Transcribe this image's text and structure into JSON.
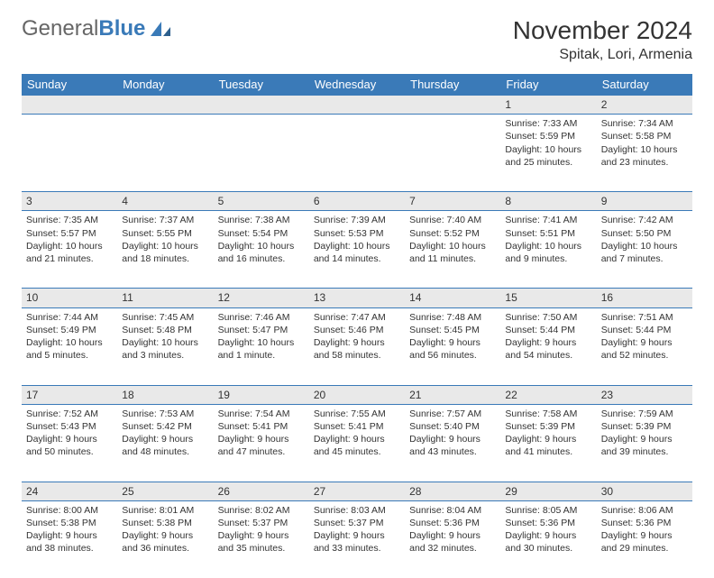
{
  "header": {
    "logo_general": "General",
    "logo_blue": "Blue",
    "month_title": "November 2024",
    "location": "Spitak, Lori, Armenia"
  },
  "colors": {
    "header_bg": "#3a7ab8",
    "header_fg": "#ffffff",
    "daynum_bg": "#e9e9e9",
    "row_border": "#3a7ab8",
    "text": "#333333"
  },
  "weekdays": [
    "Sunday",
    "Monday",
    "Tuesday",
    "Wednesday",
    "Thursday",
    "Friday",
    "Saturday"
  ],
  "weeks": [
    {
      "nums": [
        "",
        "",
        "",
        "",
        "",
        "1",
        "2"
      ],
      "cells": [
        null,
        null,
        null,
        null,
        null,
        {
          "sunrise": "Sunrise: 7:33 AM",
          "sunset": "Sunset: 5:59 PM",
          "day1": "Daylight: 10 hours",
          "day2": "and 25 minutes."
        },
        {
          "sunrise": "Sunrise: 7:34 AM",
          "sunset": "Sunset: 5:58 PM",
          "day1": "Daylight: 10 hours",
          "day2": "and 23 minutes."
        }
      ]
    },
    {
      "nums": [
        "3",
        "4",
        "5",
        "6",
        "7",
        "8",
        "9"
      ],
      "cells": [
        {
          "sunrise": "Sunrise: 7:35 AM",
          "sunset": "Sunset: 5:57 PM",
          "day1": "Daylight: 10 hours",
          "day2": "and 21 minutes."
        },
        {
          "sunrise": "Sunrise: 7:37 AM",
          "sunset": "Sunset: 5:55 PM",
          "day1": "Daylight: 10 hours",
          "day2": "and 18 minutes."
        },
        {
          "sunrise": "Sunrise: 7:38 AM",
          "sunset": "Sunset: 5:54 PM",
          "day1": "Daylight: 10 hours",
          "day2": "and 16 minutes."
        },
        {
          "sunrise": "Sunrise: 7:39 AM",
          "sunset": "Sunset: 5:53 PM",
          "day1": "Daylight: 10 hours",
          "day2": "and 14 minutes."
        },
        {
          "sunrise": "Sunrise: 7:40 AM",
          "sunset": "Sunset: 5:52 PM",
          "day1": "Daylight: 10 hours",
          "day2": "and 11 minutes."
        },
        {
          "sunrise": "Sunrise: 7:41 AM",
          "sunset": "Sunset: 5:51 PM",
          "day1": "Daylight: 10 hours",
          "day2": "and 9 minutes."
        },
        {
          "sunrise": "Sunrise: 7:42 AM",
          "sunset": "Sunset: 5:50 PM",
          "day1": "Daylight: 10 hours",
          "day2": "and 7 minutes."
        }
      ]
    },
    {
      "nums": [
        "10",
        "11",
        "12",
        "13",
        "14",
        "15",
        "16"
      ],
      "cells": [
        {
          "sunrise": "Sunrise: 7:44 AM",
          "sunset": "Sunset: 5:49 PM",
          "day1": "Daylight: 10 hours",
          "day2": "and 5 minutes."
        },
        {
          "sunrise": "Sunrise: 7:45 AM",
          "sunset": "Sunset: 5:48 PM",
          "day1": "Daylight: 10 hours",
          "day2": "and 3 minutes."
        },
        {
          "sunrise": "Sunrise: 7:46 AM",
          "sunset": "Sunset: 5:47 PM",
          "day1": "Daylight: 10 hours",
          "day2": "and 1 minute."
        },
        {
          "sunrise": "Sunrise: 7:47 AM",
          "sunset": "Sunset: 5:46 PM",
          "day1": "Daylight: 9 hours",
          "day2": "and 58 minutes."
        },
        {
          "sunrise": "Sunrise: 7:48 AM",
          "sunset": "Sunset: 5:45 PM",
          "day1": "Daylight: 9 hours",
          "day2": "and 56 minutes."
        },
        {
          "sunrise": "Sunrise: 7:50 AM",
          "sunset": "Sunset: 5:44 PM",
          "day1": "Daylight: 9 hours",
          "day2": "and 54 minutes."
        },
        {
          "sunrise": "Sunrise: 7:51 AM",
          "sunset": "Sunset: 5:44 PM",
          "day1": "Daylight: 9 hours",
          "day2": "and 52 minutes."
        }
      ]
    },
    {
      "nums": [
        "17",
        "18",
        "19",
        "20",
        "21",
        "22",
        "23"
      ],
      "cells": [
        {
          "sunrise": "Sunrise: 7:52 AM",
          "sunset": "Sunset: 5:43 PM",
          "day1": "Daylight: 9 hours",
          "day2": "and 50 minutes."
        },
        {
          "sunrise": "Sunrise: 7:53 AM",
          "sunset": "Sunset: 5:42 PM",
          "day1": "Daylight: 9 hours",
          "day2": "and 48 minutes."
        },
        {
          "sunrise": "Sunrise: 7:54 AM",
          "sunset": "Sunset: 5:41 PM",
          "day1": "Daylight: 9 hours",
          "day2": "and 47 minutes."
        },
        {
          "sunrise": "Sunrise: 7:55 AM",
          "sunset": "Sunset: 5:41 PM",
          "day1": "Daylight: 9 hours",
          "day2": "and 45 minutes."
        },
        {
          "sunrise": "Sunrise: 7:57 AM",
          "sunset": "Sunset: 5:40 PM",
          "day1": "Daylight: 9 hours",
          "day2": "and 43 minutes."
        },
        {
          "sunrise": "Sunrise: 7:58 AM",
          "sunset": "Sunset: 5:39 PM",
          "day1": "Daylight: 9 hours",
          "day2": "and 41 minutes."
        },
        {
          "sunrise": "Sunrise: 7:59 AM",
          "sunset": "Sunset: 5:39 PM",
          "day1": "Daylight: 9 hours",
          "day2": "and 39 minutes."
        }
      ]
    },
    {
      "nums": [
        "24",
        "25",
        "26",
        "27",
        "28",
        "29",
        "30"
      ],
      "cells": [
        {
          "sunrise": "Sunrise: 8:00 AM",
          "sunset": "Sunset: 5:38 PM",
          "day1": "Daylight: 9 hours",
          "day2": "and 38 minutes."
        },
        {
          "sunrise": "Sunrise: 8:01 AM",
          "sunset": "Sunset: 5:38 PM",
          "day1": "Daylight: 9 hours",
          "day2": "and 36 minutes."
        },
        {
          "sunrise": "Sunrise: 8:02 AM",
          "sunset": "Sunset: 5:37 PM",
          "day1": "Daylight: 9 hours",
          "day2": "and 35 minutes."
        },
        {
          "sunrise": "Sunrise: 8:03 AM",
          "sunset": "Sunset: 5:37 PM",
          "day1": "Daylight: 9 hours",
          "day2": "and 33 minutes."
        },
        {
          "sunrise": "Sunrise: 8:04 AM",
          "sunset": "Sunset: 5:36 PM",
          "day1": "Daylight: 9 hours",
          "day2": "and 32 minutes."
        },
        {
          "sunrise": "Sunrise: 8:05 AM",
          "sunset": "Sunset: 5:36 PM",
          "day1": "Daylight: 9 hours",
          "day2": "and 30 minutes."
        },
        {
          "sunrise": "Sunrise: 8:06 AM",
          "sunset": "Sunset: 5:36 PM",
          "day1": "Daylight: 9 hours",
          "day2": "and 29 minutes."
        }
      ]
    }
  ]
}
